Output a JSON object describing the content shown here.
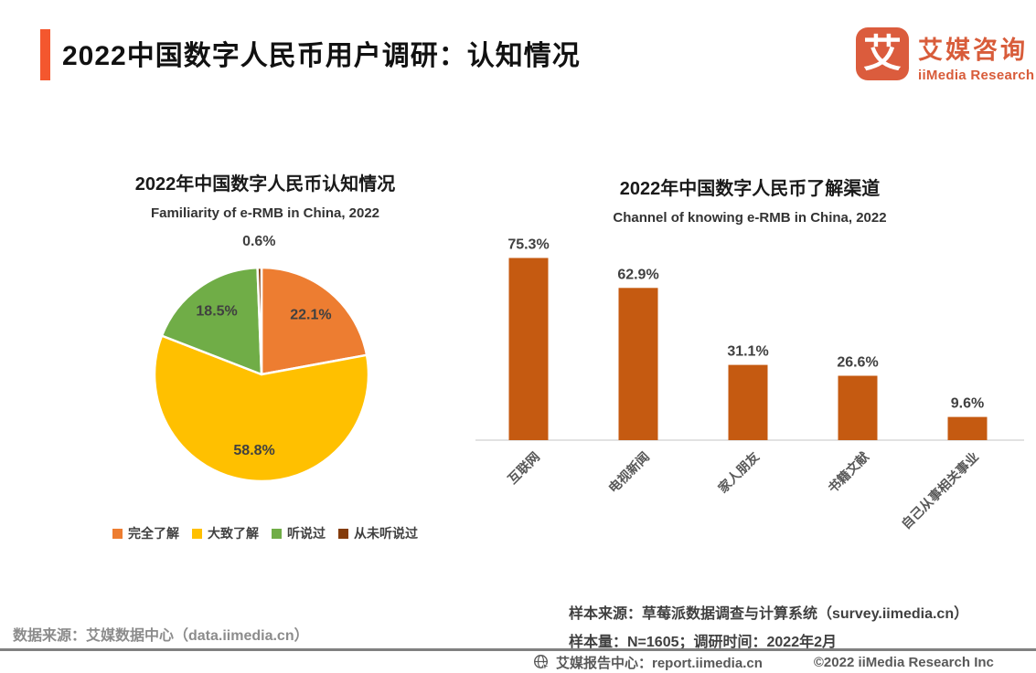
{
  "header": {
    "title": "2022中国数字人民币用户调研：认知情况",
    "logo": {
      "glyph": "艾",
      "brand_cn": "艾媒咨询",
      "brand_en": "iiMedia Research"
    }
  },
  "chart_data": [
    {
      "type": "pie",
      "title": "2022年中国数字人民币认知情况",
      "subtitle": "Familiarity of e-RMB in China, 2022",
      "labels": [
        "完全了解",
        "大致了解",
        "听说过",
        "从未听说过"
      ],
      "values": [
        22.1,
        58.8,
        18.5,
        0.6
      ],
      "value_labels": [
        "22.1%",
        "58.8%",
        "18.5%",
        "0.6%"
      ],
      "colors": [
        "#ED7D31",
        "#FFC000",
        "#70AD47",
        "#843C0C"
      ],
      "legend_position": "bottom",
      "start_angle_deg": -90,
      "direction": "clockwise"
    },
    {
      "type": "bar",
      "title": "2022年中国数字人民币了解渠道",
      "subtitle": "Channel of knowing e-RMB in China, 2022",
      "categories": [
        "互联网",
        "电视新闻",
        "家人朋友",
        "书籍文献",
        "自己从事相关事业"
      ],
      "values": [
        75.3,
        62.9,
        31.1,
        26.6,
        9.6
      ],
      "value_labels": [
        "75.3%",
        "62.9%",
        "31.1%",
        "26.6%",
        "9.6%"
      ],
      "bar_color": "#C55A11",
      "axis_line_color": "#D9D9D9",
      "ylim": [
        0,
        80
      ],
      "grid": false,
      "category_label_rotation_deg": -45
    }
  ],
  "footnotes": {
    "data_source": "数据来源：艾媒数据中心（data.iimedia.cn）",
    "sample_source": "样本来源：草莓派数据调查与计算系统（survey.iimedia.cn）",
    "sample_size": "样本量：N=1605；调研时间：2022年2月"
  },
  "footer": {
    "report_center": "艾媒报告中心：report.iimedia.cn",
    "copyright": "©2022 iiMedia Research Inc",
    "icon": "globe-cursor-icon"
  },
  "colors": {
    "accent": "#F4572E",
    "logo": "#DB5C3D",
    "title_text": "#111111",
    "label_text": "#404040",
    "category_text": "#595959",
    "source_text": "#8C8C8C",
    "separator": "#808080"
  }
}
